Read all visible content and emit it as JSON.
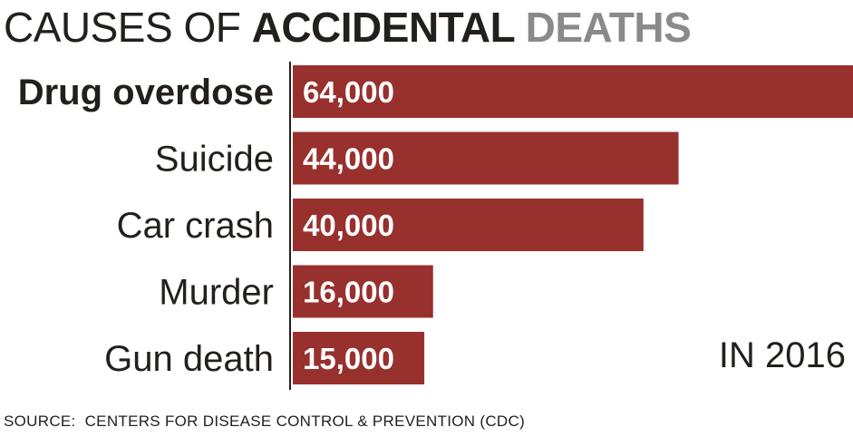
{
  "title": {
    "part1": "CAUSES OF ",
    "part2": "ACCIDENTAL ",
    "part3": "DEATHS"
  },
  "chart_data": {
    "type": "bar",
    "orientation": "horizontal",
    "categories": [
      "Drug overdose",
      "Suicide",
      "Car crash",
      "Murder",
      "Gun death"
    ],
    "values": [
      64000,
      44000,
      40000,
      16000,
      15000
    ],
    "value_labels": [
      "64,000",
      "44,000",
      "40,000",
      "16,000",
      "15,000"
    ],
    "highlight_category": "Drug overdose",
    "xlim": [
      0,
      64000
    ],
    "grid": false,
    "bar_color": "#98302e",
    "axis_color": "#231f1c"
  },
  "annotation": "IN 2016",
  "source": "SOURCE:  CENTERS FOR DISEASE CONTROL & PREVENTION (CDC)"
}
